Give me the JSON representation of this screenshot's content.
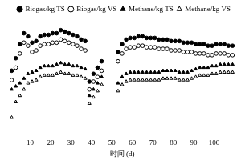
{
  "chart_data": {
    "type": "scatter",
    "x_label": "时间 (d)",
    "x": [
      1,
      3,
      5,
      7,
      9,
      11,
      13,
      15,
      17,
      19,
      21,
      23,
      25,
      27,
      29,
      31,
      33,
      35,
      37,
      39,
      41,
      43,
      45,
      53,
      55,
      57,
      59,
      61,
      63,
      65,
      67,
      69,
      71,
      73,
      75,
      77,
      79,
      81,
      83,
      85,
      87,
      89,
      91,
      93,
      95,
      97,
      99,
      101,
      103,
      105,
      107,
      109
    ],
    "series": [
      {
        "name": "Biogas/kg TS",
        "color": "#000000",
        "marker": "filled_circle",
        "values": [
          38,
          46,
          55,
          62,
          60,
          56,
          57,
          60,
          61,
          61,
          62,
          62,
          64,
          63,
          62,
          61,
          60,
          58,
          57,
          31,
          36,
          40,
          44,
          50,
          55,
          58,
          59,
          59,
          60,
          60,
          59,
          59,
          59,
          58,
          58,
          58,
          57,
          57,
          57,
          56,
          56,
          56,
          55,
          55,
          55,
          54,
          54,
          55,
          55,
          55,
          54,
          54
        ]
      },
      {
        "name": "Biogas/kg VS",
        "color": "#000000",
        "marker": "open_circle",
        "values": [
          32,
          40,
          49,
          56,
          54,
          50,
          51,
          54,
          55,
          55,
          56,
          56,
          58,
          57,
          56,
          55,
          54,
          52,
          51,
          26,
          31,
          34,
          38,
          44,
          49,
          52,
          53,
          53,
          54,
          54,
          53,
          53,
          53,
          52,
          52,
          52,
          51,
          51,
          51,
          50,
          50,
          50,
          49,
          49,
          49,
          48,
          48,
          49,
          49,
          49,
          48,
          48
        ]
      },
      {
        "name": "Methane/kg TS",
        "color": "#000000",
        "marker": "filled_triangle",
        "values": [
          26,
          28,
          30,
          33,
          36,
          37,
          38,
          40,
          41,
          41,
          41,
          42,
          43,
          42,
          42,
          41,
          41,
          40,
          39,
          22,
          26,
          30,
          34,
          30,
          34,
          36,
          37,
          37,
          37,
          37,
          37,
          37,
          37,
          37,
          38,
          38,
          38,
          38,
          37,
          37,
          37,
          38,
          39,
          40,
          40,
          40,
          41,
          41,
          42,
          42,
          42,
          42
        ]
      },
      {
        "name": "Methane/kg VS",
        "color": "#000000",
        "marker": "open_triangle",
        "values": [
          8,
          18,
          22,
          26,
          30,
          31,
          32,
          34,
          35,
          35,
          35,
          36,
          37,
          36,
          36,
          35,
          35,
          34,
          33,
          17,
          21,
          25,
          29,
          25,
          29,
          31,
          32,
          32,
          32,
          32,
          32,
          32,
          32,
          32,
          33,
          33,
          33,
          33,
          32,
          32,
          32,
          33,
          34,
          35,
          35,
          35,
          36,
          36,
          37,
          37,
          37,
          37
        ]
      }
    ],
    "xlim": [
      0,
      110
    ],
    "xticks": [
      10,
      20,
      30,
      40,
      50,
      60,
      70,
      80,
      90,
      100
    ],
    "ylim": [
      0,
      70
    ],
    "tick_labels": "x",
    "grid": false,
    "legend": "top"
  }
}
